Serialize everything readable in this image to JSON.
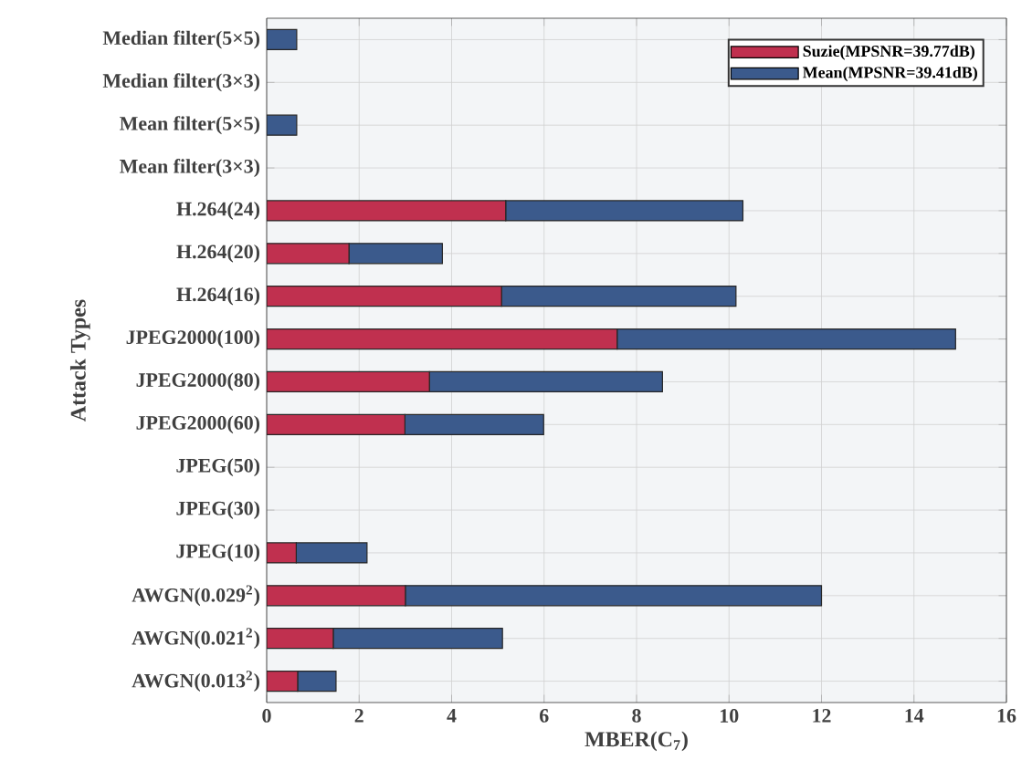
{
  "chart_data": {
    "type": "bar",
    "orientation": "horizontal",
    "stacked": true,
    "xlabel": "MBER(C$_{7}$)",
    "ylabel": "Attack Types",
    "categories": [
      "Median filter(5×5)",
      "Median filter(3×3)",
      "Mean filter(5×5)",
      "Mean filter(3×3)",
      "H.264(24)",
      "H.264(20)",
      "H.264(16)",
      "JPEG2000(100)",
      "JPEG2000(80)",
      "JPEG2000(60)",
      "JPEG(50)",
      "JPEG(30)",
      "JPEG(10)",
      "AWGN(0.029$^{2}$)",
      "AWGN(0.021$^{2}$)",
      "AWGN(0.013$^{2}$)"
    ],
    "series": [
      {
        "name": "Suzie(MPSNR=39.77dB)",
        "color": "#c0304f",
        "values": [
          0,
          0,
          0,
          0,
          5.17,
          1.78,
          5.08,
          7.58,
          3.52,
          2.99,
          0,
          0,
          0.64,
          3.0,
          1.44,
          0.67
        ]
      },
      {
        "name": "Mean(MPSNR=39.41dB)",
        "color": "#3b5a8c",
        "values": [
          0.65,
          0,
          0.65,
          0,
          5.13,
          2.02,
          5.07,
          7.32,
          5.04,
          3.0,
          0,
          0,
          1.53,
          9.0,
          3.66,
          0.83
        ]
      }
    ],
    "xlim": [
      0,
      16
    ],
    "xticks": [
      0,
      2,
      4,
      6,
      8,
      10,
      12,
      14,
      16
    ],
    "grid": true,
    "legend": "top right"
  }
}
